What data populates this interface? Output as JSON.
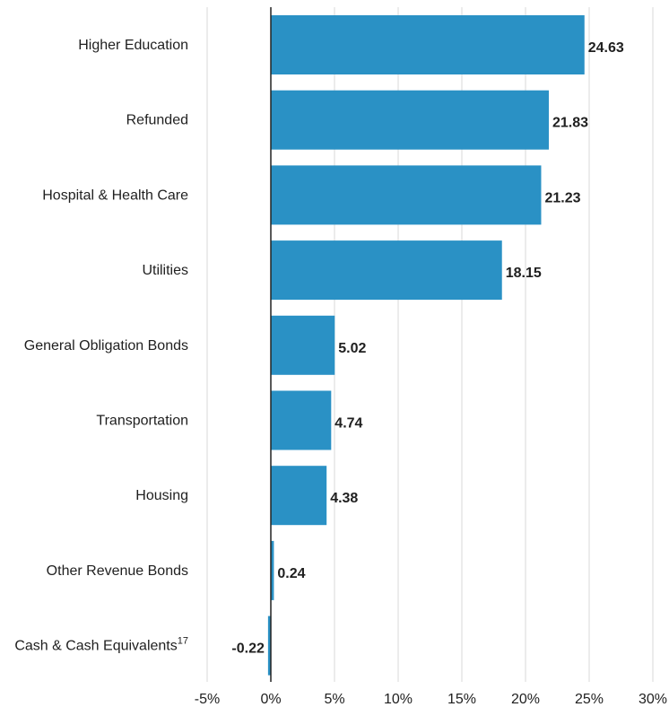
{
  "chart_data": {
    "type": "bar",
    "orientation": "horizontal",
    "title": "",
    "xlabel": "",
    "ylabel": "",
    "categories": [
      "Higher Education",
      "Refunded",
      "Hospital & Health Care",
      "Utilities",
      "General Obligation Bonds",
      "Transportation",
      "Housing",
      "Other Revenue Bonds",
      "Cash & Cash Equivalents"
    ],
    "category_superscripts": [
      "",
      "",
      "",
      "",
      "",
      "",
      "",
      "",
      "17"
    ],
    "values": [
      24.63,
      21.83,
      21.23,
      18.15,
      5.02,
      4.74,
      4.38,
      0.24,
      -0.22
    ],
    "value_labels": [
      "24.63",
      "21.83",
      "21.23",
      "18.15",
      "5.02",
      "4.74",
      "4.38",
      "0.24",
      "-0.22"
    ],
    "xlim": [
      -5,
      30
    ],
    "x_ticks": [
      -5,
      0,
      5,
      10,
      15,
      20,
      25,
      30
    ],
    "x_tick_labels": [
      "-5%",
      "0%",
      "5%",
      "10%",
      "15%",
      "20%",
      "25%",
      "30%"
    ],
    "grid": "vertical",
    "legend": "none",
    "colors": {
      "bar": "#2a91c5",
      "gridline": "#d9d9d9",
      "zero_line": "#222222"
    }
  }
}
